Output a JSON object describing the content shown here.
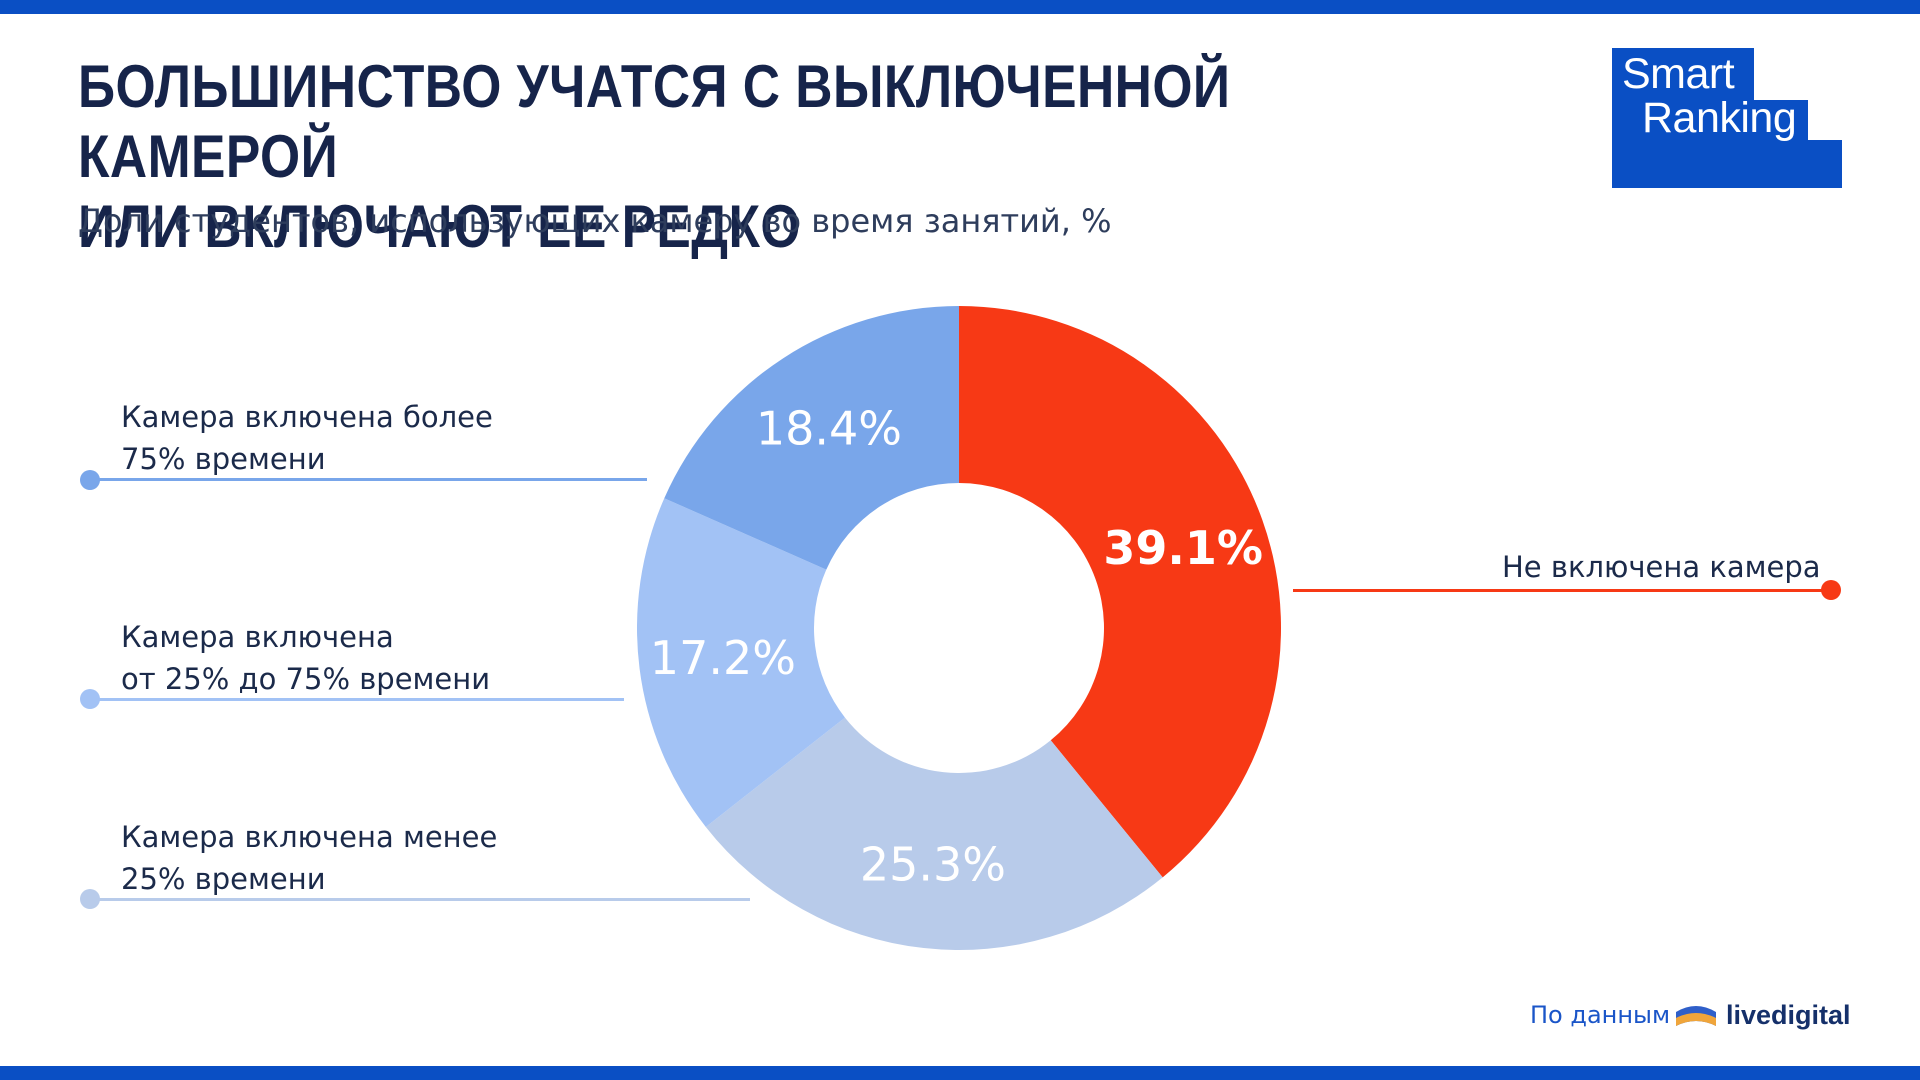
{
  "header": {
    "title_line1": "Большинство учатся с выключенной камерой",
    "title_line2": "или включают ее редко",
    "subtitle": "Доли студентов, использующих камеру во время занятий, %"
  },
  "logo": {
    "line1": "Smart",
    "line2": "Ranking"
  },
  "legend": {
    "item_75_line1": "Камера включена более",
    "item_75_line2": "75% времени",
    "item_mid_line1": "Камера включена",
    "item_mid_line2": "от 25% до 75% времени",
    "item_25_line1": "Камера включена менее",
    "item_25_line2": "25% времени",
    "item_off": "Не включена камера"
  },
  "footer": {
    "source_prefix": "По данным",
    "source_brand": "livedigital"
  },
  "colors": {
    "brand_blue": "#0a4fc4",
    "off": "#f73915",
    "more_75": "#79a6ea",
    "mid": "#a2c2f5",
    "less_25": "#b8cbea"
  },
  "chart_data": {
    "type": "pie",
    "donut": true,
    "title": "Большинство учатся с выключенной камерой или включают ее редко",
    "subtitle": "Доли студентов, использующих камеру во время занятий, %",
    "slices": [
      {
        "name": "Не включена камера",
        "value": 39.1,
        "label": "39.1%",
        "color": "#f73915",
        "bold": true
      },
      {
        "name": "Камера включена менее 25% времени",
        "value": 25.3,
        "label": "25.3%",
        "color": "#b8cbea",
        "bold": false
      },
      {
        "name": "Камера включена от 25% до 75% времени",
        "value": 17.2,
        "label": "17.2%",
        "color": "#a2c2f5",
        "bold": false
      },
      {
        "name": "Камера включена более 75% времени",
        "value": 18.4,
        "label": "18.4%",
        "color": "#79a6ea",
        "bold": false
      }
    ]
  }
}
